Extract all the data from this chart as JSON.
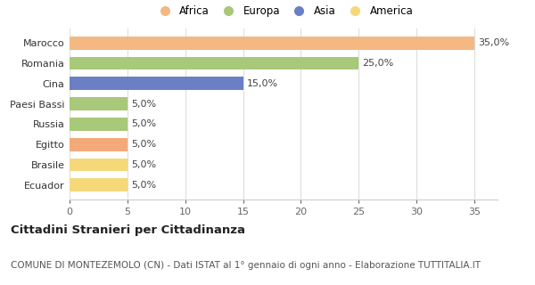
{
  "categories": [
    "Ecuador",
    "Brasile",
    "Egitto",
    "Russia",
    "Paesi Bassi",
    "Cina",
    "Romania",
    "Marocco"
  ],
  "values": [
    5.0,
    5.0,
    5.0,
    5.0,
    5.0,
    15.0,
    25.0,
    35.0
  ],
  "colors": [
    "#f5d87a",
    "#f5d87a",
    "#f4a97a",
    "#a8c87a",
    "#a8c87a",
    "#6b7fc4",
    "#a8c87a",
    "#f4b882"
  ],
  "legend_items": [
    {
      "label": "Africa",
      "color": "#f4b882"
    },
    {
      "label": "Europa",
      "color": "#a8c87a"
    },
    {
      "label": "Asia",
      "color": "#6b7fc4"
    },
    {
      "label": "America",
      "color": "#f5d87a"
    }
  ],
  "title_bold": "Cittadini Stranieri per Cittadinanza",
  "subtitle": "COMUNE DI MONTEZEMOLO (CN) - Dati ISTAT al 1° gennaio di ogni anno - Elaborazione TUTTITALIA.IT",
  "xlim": [
    0,
    37
  ],
  "xticks": [
    0,
    5,
    10,
    15,
    20,
    25,
    30,
    35
  ],
  "background_color": "#ffffff",
  "grid_color": "#dddddd",
  "bar_height": 0.65,
  "label_fontsize": 8.0,
  "tick_fontsize": 8.0,
  "legend_fontsize": 8.5,
  "title_fontsize": 9.5,
  "subtitle_fontsize": 7.5
}
